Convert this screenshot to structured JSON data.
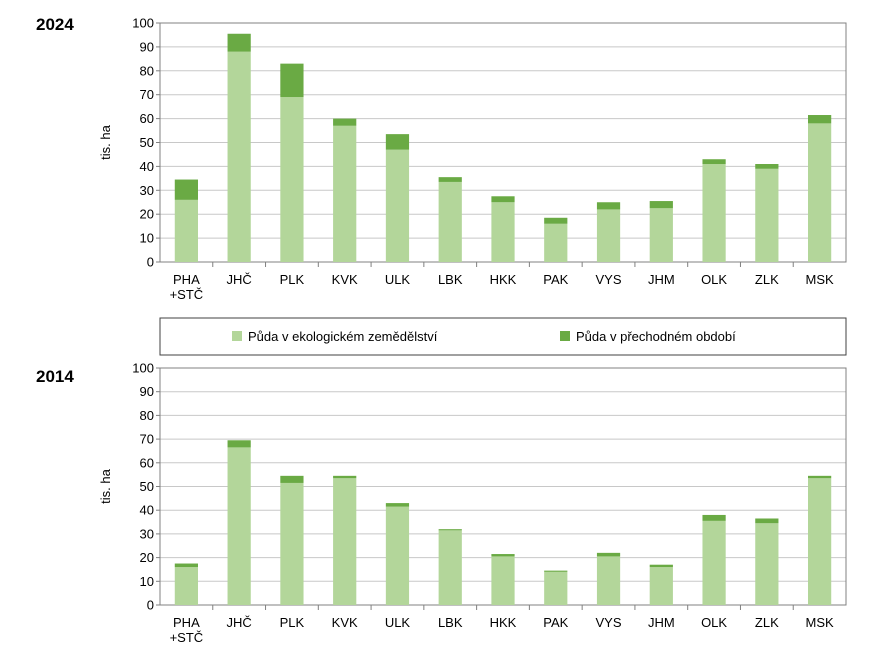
{
  "colors": {
    "eco": "#b3d69a",
    "transition": "#6aaa44",
    "grid": "#c8c8c8",
    "axis": "#808080"
  },
  "legend": {
    "eco_label": "Půda v ekologickém zemědělství",
    "transition_label": "Půda v přechodném období"
  },
  "chart_data": [
    {
      "type": "bar",
      "stacked": true,
      "title": "2024",
      "ylabel": "tis. ha",
      "ylim": [
        0,
        100
      ],
      "yticks": [
        0,
        10,
        20,
        30,
        40,
        50,
        60,
        70,
        80,
        90,
        100
      ],
      "grid": true,
      "categories": [
        "PHA\n+STČ",
        "JHČ",
        "PLK",
        "KVK",
        "ULK",
        "LBK",
        "HKK",
        "PAK",
        "VYS",
        "JHM",
        "OLK",
        "ZLK",
        "MSK"
      ],
      "series": [
        {
          "name": "Půda v ekologickém zemědělství",
          "values": [
            26,
            88,
            69,
            57,
            47,
            33.5,
            25,
            16,
            22,
            22.5,
            41,
            39,
            58
          ]
        },
        {
          "name": "Půda v přechodném období",
          "values": [
            8.5,
            7.5,
            14,
            3,
            6.5,
            2,
            2.5,
            2.5,
            3,
            3,
            2,
            2,
            3.5
          ]
        }
      ]
    },
    {
      "type": "bar",
      "stacked": true,
      "title": "2014",
      "ylabel": "tis. ha",
      "ylim": [
        0,
        100
      ],
      "yticks": [
        0,
        10,
        20,
        30,
        40,
        50,
        60,
        70,
        80,
        90,
        100
      ],
      "grid": true,
      "categories": [
        "PHA\n+STČ",
        "JHČ",
        "PLK",
        "KVK",
        "ULK",
        "LBK",
        "HKK",
        "PAK",
        "VYS",
        "JHM",
        "OLK",
        "ZLK",
        "MSK"
      ],
      "series": [
        {
          "name": "Půda v ekologickém zemědělství",
          "values": [
            16,
            66.5,
            51.5,
            53.5,
            41.5,
            31.5,
            20.5,
            14,
            20.5,
            16,
            35.5,
            34.5,
            53.5
          ]
        },
        {
          "name": "Půda v přechodném období",
          "values": [
            1.5,
            3,
            3,
            1,
            1.5,
            0.5,
            1,
            0.5,
            1.5,
            1,
            2.5,
            2,
            1
          ]
        }
      ]
    }
  ]
}
